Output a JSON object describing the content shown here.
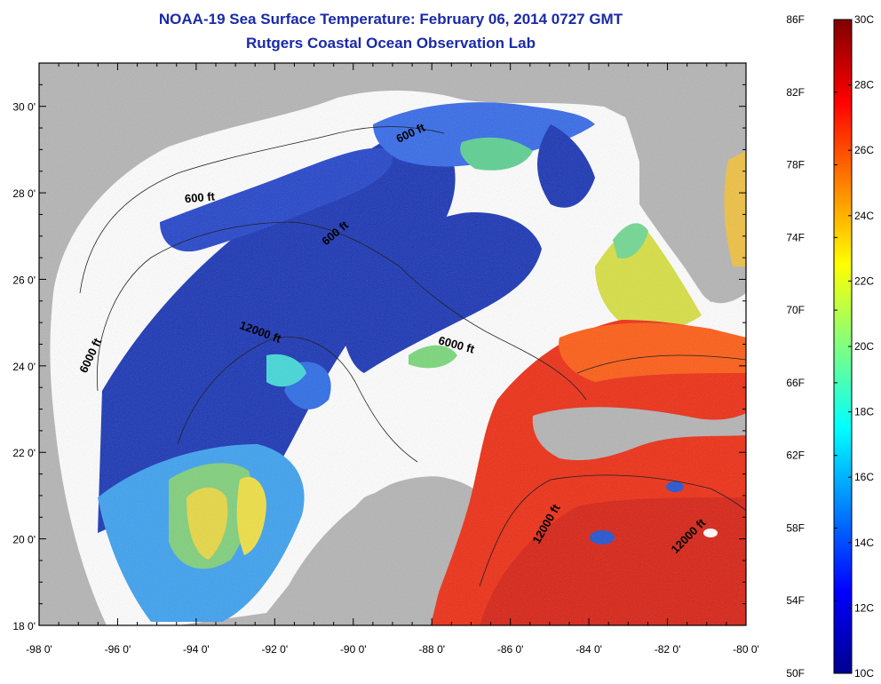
{
  "title": "NOAA-19 Sea Surface Temperature:  February 06, 2014 0727 GMT",
  "subtitle": "Rutgers Coastal Ocean Observation Lab",
  "map": {
    "lat_ticks": [
      {
        "value": 30,
        "label": "30 0'"
      },
      {
        "value": 28,
        "label": "28 0'"
      },
      {
        "value": 26,
        "label": "26 0'"
      },
      {
        "value": 24,
        "label": "24 0'"
      },
      {
        "value": 22,
        "label": "22 0'"
      },
      {
        "value": 20,
        "label": "20 0'"
      },
      {
        "value": 18,
        "label": "18 0'"
      }
    ],
    "lon_ticks": [
      {
        "value": -98,
        "label": "-98 0'"
      },
      {
        "value": -96,
        "label": "-96 0'"
      },
      {
        "value": -94,
        "label": "-94 0'"
      },
      {
        "value": -92,
        "label": "-92 0'"
      },
      {
        "value": -90,
        "label": "-90 0'"
      },
      {
        "value": -88,
        "label": "-88 0'"
      },
      {
        "value": -86,
        "label": "-86 0'"
      },
      {
        "value": -84,
        "label": "-84 0'"
      },
      {
        "value": -82,
        "label": "-82 0'"
      },
      {
        "value": -80,
        "label": "-80 0'"
      }
    ],
    "lat_range": [
      18,
      31
    ],
    "lon_range": [
      -98,
      -80
    ],
    "contour_labels": [
      {
        "text": "600 ft",
        "lon": -93.9,
        "lat": 27.8
      },
      {
        "text": "600 ft",
        "lon": -88.5,
        "lat": 29.3
      },
      {
        "text": "600 ft",
        "lon": -90.4,
        "lat": 27.0
      },
      {
        "text": "6000 ft",
        "lon": -96.6,
        "lat": 24.2
      },
      {
        "text": "12000 ft",
        "lon": -92.4,
        "lat": 24.7
      },
      {
        "text": "6000 ft",
        "lon": -87.4,
        "lat": 24.4
      },
      {
        "text": "12000 ft",
        "lon": -85.0,
        "lat": 20.3
      },
      {
        "text": "12000 ft",
        "lon": -81.4,
        "lat": 20.0
      }
    ],
    "colors": {
      "land": "#b4b4b4",
      "cloud": "#ffffff",
      "cold_blue": "#0a28b0",
      "mid_blue": "#1e64e6",
      "warm_red": "#ee2a10",
      "orange": "#ff7a10",
      "yellow": "#f0e040",
      "green": "#60d080"
    }
  },
  "colorbar": {
    "f_labels": [
      "86F",
      "82F",
      "78F",
      "74F",
      "70F",
      "66F",
      "62F",
      "58F",
      "54F",
      "50F"
    ],
    "c_labels": [
      "30C",
      "28C",
      "26C",
      "24C",
      "22C",
      "20C",
      "18C",
      "16C",
      "14C",
      "12C",
      "10C"
    ],
    "range_c": [
      10,
      30
    ],
    "range_f": [
      50,
      86
    ],
    "stops": [
      "#00008f",
      "#0000ff",
      "#0080ff",
      "#00ffff",
      "#80ff80",
      "#ffff00",
      "#ff8000",
      "#ff0000",
      "#800000"
    ]
  }
}
